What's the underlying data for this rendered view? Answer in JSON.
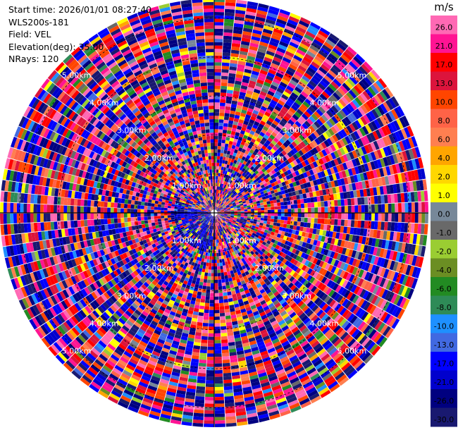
{
  "header": {
    "start_time": "Start time: 2026/01/01 08:27:40",
    "instrument": "WLS200s-181",
    "field": "Field: VEL",
    "elevation": "Elevation(deg): 35.00",
    "nrays": "NRays: 120"
  },
  "chart_data": {
    "type": "heatmap",
    "projection": "polar-ppi",
    "title": "",
    "field": "VEL",
    "units": "m/s",
    "n_rays": 120,
    "elevation_deg": 35.0,
    "range_max_km": 5.5,
    "range_rings_km": [
      1.0,
      2.0,
      3.0,
      4.0,
      5.0
    ],
    "ring_labels": [
      "1.00km",
      "2.00km",
      "3.00km",
      "4.00km",
      "5.00km"
    ],
    "colorbar": {
      "label": "m/s",
      "ticks": [
        "26.0",
        "21.0",
        "17.0",
        "13.0",
        "10.0",
        "8.0",
        "6.0",
        "4.0",
        "2.0",
        "1.0",
        "0.0",
        "-1.0",
        "-2.0",
        "-4.0",
        "-6.0",
        "-8.0",
        "-10.0",
        "-13.0",
        "-17.0",
        "-21.0",
        "-26.0",
        "-30.0"
      ],
      "colors": [
        "#ff69b4",
        "#ff1493",
        "#ff0000",
        "#dc143c",
        "#ff4500",
        "#ff6347",
        "#ff7f50",
        "#ffa500",
        "#ffd700",
        "#ffff00",
        "#778899",
        "#696969",
        "#9acd32",
        "#6b8e23",
        "#228b22",
        "#2e8b57",
        "#1e90ff",
        "#4169e1",
        "#0000ff",
        "#0000cd",
        "#000080",
        "#191970"
      ],
      "range": [
        -30,
        30
      ]
    }
  }
}
